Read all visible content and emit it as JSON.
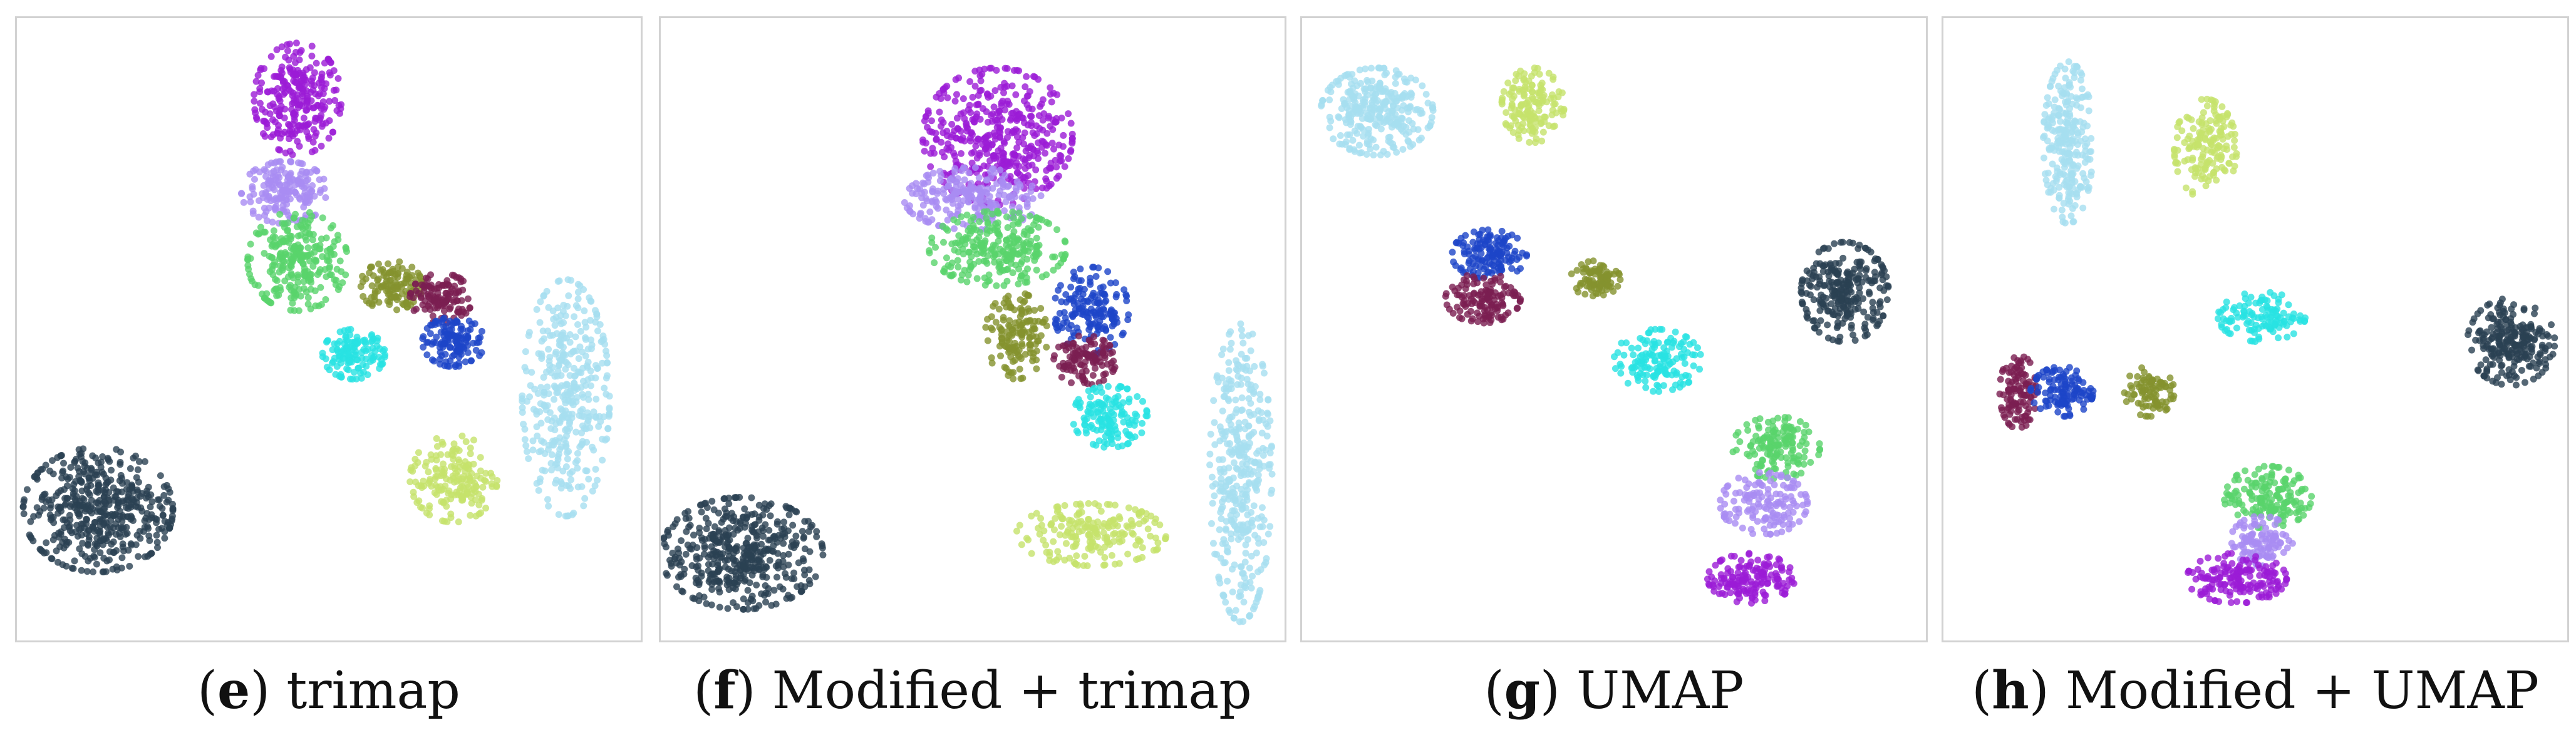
{
  "panels": [
    {
      "letter": "e",
      "label": "trimap",
      "chart_data": {
        "type": "scatter",
        "xlim": [
          0,
          100
        ],
        "ylim": [
          0,
          100
        ],
        "grid": false,
        "axes": "hidden",
        "clusters": [
          {
            "color": "#9b1bd6",
            "cx": 45,
            "cy": 87,
            "rx": 7,
            "ry": 9,
            "n": 260
          },
          {
            "color": "#a98cf2",
            "cx": 43,
            "cy": 72,
            "rx": 7,
            "ry": 5,
            "n": 180
          },
          {
            "color": "#59d36b",
            "cx": 45,
            "cy": 61,
            "rx": 8,
            "ry": 8,
            "n": 260
          },
          {
            "color": "#84922e",
            "cx": 60,
            "cy": 57,
            "rx": 5,
            "ry": 4,
            "n": 120
          },
          {
            "color": "#7b1e51",
            "cx": 68,
            "cy": 55,
            "rx": 5,
            "ry": 4,
            "n": 120
          },
          {
            "color": "#1d45c8",
            "cx": 70,
            "cy": 48,
            "rx": 5,
            "ry": 4,
            "n": 130
          },
          {
            "color": "#28e2e2",
            "cx": 54,
            "cy": 46,
            "rx": 5,
            "ry": 4,
            "n": 130
          },
          {
            "color": "#a6dff0",
            "cx": 88,
            "cy": 39,
            "rx": 7,
            "ry": 19,
            "n": 380
          },
          {
            "color": "#c5e26c",
            "cx": 70,
            "cy": 26,
            "rx": 7,
            "ry": 7,
            "n": 180
          },
          {
            "color": "#2b4152",
            "cx": 13,
            "cy": 21,
            "rx": 12,
            "ry": 10,
            "n": 480
          }
        ]
      }
    },
    {
      "letter": "f",
      "label": "Modified + trimap",
      "chart_data": {
        "type": "scatter",
        "xlim": [
          0,
          100
        ],
        "ylim": [
          0,
          100
        ],
        "grid": false,
        "axes": "hidden",
        "clusters": [
          {
            "color": "#9b1bd6",
            "cx": 54,
            "cy": 81,
            "rx": 12,
            "ry": 11,
            "n": 420
          },
          {
            "color": "#a98cf2",
            "cx": 50,
            "cy": 71,
            "rx": 11,
            "ry": 5,
            "n": 220
          },
          {
            "color": "#59d36b",
            "cx": 54,
            "cy": 63,
            "rx": 11,
            "ry": 6,
            "n": 260
          },
          {
            "color": "#84922e",
            "cx": 57,
            "cy": 49,
            "rx": 5,
            "ry": 7,
            "n": 150
          },
          {
            "color": "#1d45c8",
            "cx": 69,
            "cy": 53,
            "rx": 6,
            "ry": 7,
            "n": 160
          },
          {
            "color": "#7b1e51",
            "cx": 68,
            "cy": 45,
            "rx": 5,
            "ry": 4,
            "n": 110
          },
          {
            "color": "#28e2e2",
            "cx": 72,
            "cy": 36,
            "rx": 6,
            "ry": 5,
            "n": 140
          },
          {
            "color": "#a6dff0",
            "cx": 93,
            "cy": 27,
            "rx": 5,
            "ry": 24,
            "n": 380
          },
          {
            "color": "#c5e26c",
            "cx": 69,
            "cy": 17,
            "rx": 12,
            "ry": 5,
            "n": 200
          },
          {
            "color": "#2b4152",
            "cx": 13,
            "cy": 14,
            "rx": 13,
            "ry": 9,
            "n": 460
          }
        ]
      }
    },
    {
      "letter": "g",
      "label": "UMAP",
      "chart_data": {
        "type": "scatter",
        "xlim": [
          0,
          100
        ],
        "ylim": [
          0,
          100
        ],
        "grid": false,
        "axes": "hidden",
        "clusters": [
          {
            "color": "#a6dff0",
            "cx": 12,
            "cy": 85,
            "rx": 9,
            "ry": 7,
            "n": 300
          },
          {
            "color": "#c5e26c",
            "cx": 37,
            "cy": 86,
            "rx": 5,
            "ry": 6,
            "n": 150
          },
          {
            "color": "#1d45c8",
            "cx": 30,
            "cy": 62,
            "rx": 6,
            "ry": 4,
            "n": 140
          },
          {
            "color": "#7b1e51",
            "cx": 29,
            "cy": 55,
            "rx": 6,
            "ry": 4,
            "n": 130
          },
          {
            "color": "#84922e",
            "cx": 47,
            "cy": 58,
            "rx": 4,
            "ry": 3,
            "n": 90
          },
          {
            "color": "#2b4152",
            "cx": 87,
            "cy": 56,
            "rx": 7,
            "ry": 8,
            "n": 260
          },
          {
            "color": "#28e2e2",
            "cx": 57,
            "cy": 45,
            "rx": 7,
            "ry": 5,
            "n": 140
          },
          {
            "color": "#59d36b",
            "cx": 76,
            "cy": 31,
            "rx": 7,
            "ry": 5,
            "n": 150
          },
          {
            "color": "#a98cf2",
            "cx": 74,
            "cy": 22,
            "rx": 7,
            "ry": 5,
            "n": 140
          },
          {
            "color": "#9b1bd6",
            "cx": 72,
            "cy": 10,
            "rx": 7,
            "ry": 4,
            "n": 150
          }
        ]
      }
    },
    {
      "letter": "h",
      "label": "Modified + UMAP",
      "chart_data": {
        "type": "scatter",
        "xlim": [
          0,
          100
        ],
        "ylim": [
          0,
          100
        ],
        "grid": false,
        "axes": "hidden",
        "clusters": [
          {
            "color": "#a6dff0",
            "cx": 20,
            "cy": 80,
            "rx": 4,
            "ry": 13,
            "n": 260
          },
          {
            "color": "#c5e26c",
            "cx": 42,
            "cy": 79,
            "rx": 5,
            "ry": 8,
            "n": 160
          },
          {
            "color": "#28e2e2",
            "cx": 51,
            "cy": 52,
            "rx": 7,
            "ry": 4,
            "n": 120
          },
          {
            "color": "#2b4152",
            "cx": 91,
            "cy": 48,
            "rx": 7,
            "ry": 7,
            "n": 240
          },
          {
            "color": "#7b1e51",
            "cx": 12,
            "cy": 40,
            "rx": 3,
            "ry": 6,
            "n": 110
          },
          {
            "color": "#1d45c8",
            "cx": 19,
            "cy": 40,
            "rx": 5,
            "ry": 4,
            "n": 120
          },
          {
            "color": "#84922e",
            "cx": 33,
            "cy": 40,
            "rx": 4,
            "ry": 4,
            "n": 90
          },
          {
            "color": "#59d36b",
            "cx": 52,
            "cy": 23,
            "rx": 7,
            "ry": 5,
            "n": 160
          },
          {
            "color": "#a98cf2",
            "cx": 51,
            "cy": 16,
            "rx": 5,
            "ry": 4,
            "n": 110
          },
          {
            "color": "#9b1bd6",
            "cx": 47,
            "cy": 10,
            "rx": 8,
            "ry": 4,
            "n": 160
          }
        ]
      }
    }
  ]
}
